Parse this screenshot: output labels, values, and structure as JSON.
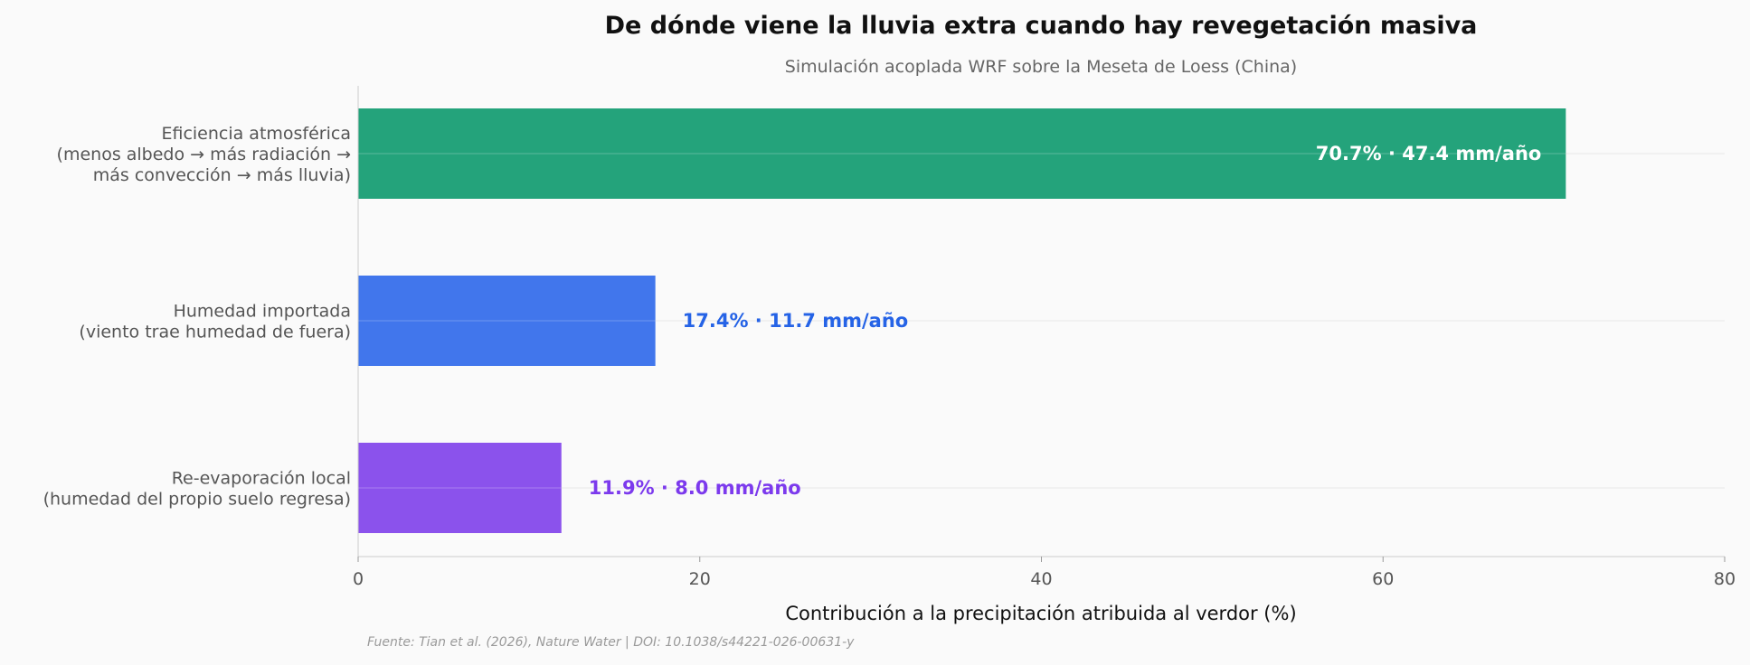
{
  "chart_data": {
    "type": "bar",
    "orientation": "horizontal",
    "title": "De dónde viene la lluvia extra cuando hay revegetación masiva",
    "subtitle": "Simulación acoplada WRF sobre la Meseta de Loess (China)",
    "xlabel": "Contribución a la precipitación atribuida al verdor (%)",
    "ylabel": "",
    "xlim": [
      0,
      80
    ],
    "xticks": [
      0,
      20,
      40,
      60,
      80
    ],
    "grid": "horizontal lines",
    "categories": [
      [
        "Eficiencia atmosférica",
        "(menos albedo → más radiación →",
        "más convección → más lluvia)"
      ],
      [
        "Humedad importada",
        "(viento trae humedad de fuera)"
      ],
      [
        "Re-evaporación local",
        "(humedad del propio suelo regresa)"
      ]
    ],
    "values": [
      70.7,
      17.4,
      11.9
    ],
    "data_labels": [
      "70.7%  ·  47.4 mm/año",
      "17.4%  ·  11.7 mm/año",
      "11.9%  ·  8.0 mm/año"
    ],
    "label_inside": [
      true,
      false,
      false
    ],
    "colors": [
      "#24a37b",
      "#4176ec",
      "#8b52ec"
    ],
    "label_colors": [
      "#ffffff",
      "#2563e6",
      "#7c3aed"
    ]
  },
  "footer": "Fuente: Tian et al. (2026), Nature Water | DOI: 10.1038/s44221-026-00631-y"
}
